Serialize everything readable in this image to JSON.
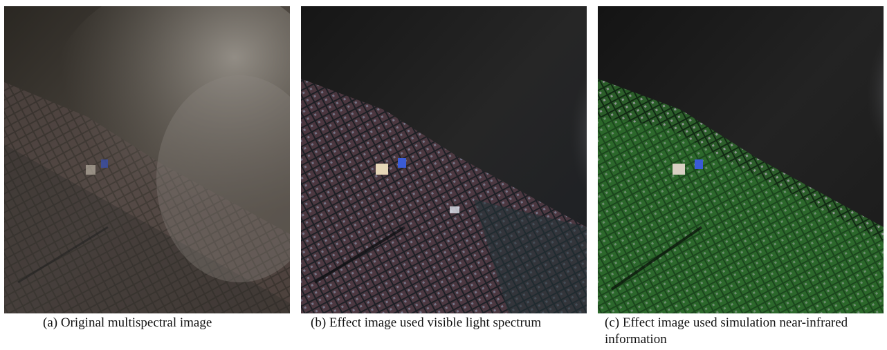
{
  "figure": {
    "panels": [
      {
        "id": "a",
        "caption": "(a) Original multispectral image",
        "tint": "#5a5247"
      },
      {
        "id": "b",
        "caption": "(b) Effect image used visible light spectrum",
        "tint": "#3a3a46"
      },
      {
        "id": "c",
        "caption": "(c) Effect image used simulation near-infrared information",
        "tint": "#1f4a22"
      }
    ]
  }
}
